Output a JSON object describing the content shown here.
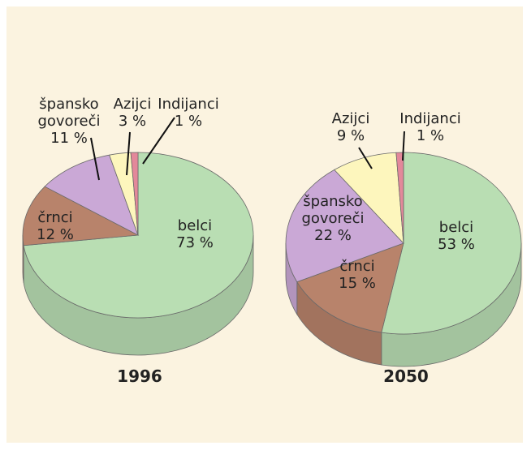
{
  "chart_data": [
    {
      "type": "pie",
      "title": "1996",
      "categories": [
        "belci",
        "črnci",
        "špansko govoreči",
        "Azijci",
        "Indijanci"
      ],
      "values": [
        73,
        12,
        11,
        3,
        1
      ],
      "value_labels": [
        "73 %",
        "12 %",
        "11 %",
        "3 %",
        "1 %"
      ],
      "colors": [
        "#b9deb3",
        "#b8836b",
        "#caa8d6",
        "#fdf6bd",
        "#e3889a"
      ]
    },
    {
      "type": "pie",
      "title": "2050",
      "categories": [
        "belci",
        "črnci",
        "špansko govoreči",
        "Azijci",
        "Indijanci"
      ],
      "values": [
        53,
        15,
        22,
        9,
        1
      ],
      "value_labels": [
        "53 %",
        "15 %",
        "22 %",
        "9 %",
        "1 %"
      ],
      "colors": [
        "#b9deb3",
        "#b8836b",
        "#caa8d6",
        "#fdf6bd",
        "#e3889a"
      ]
    }
  ]
}
